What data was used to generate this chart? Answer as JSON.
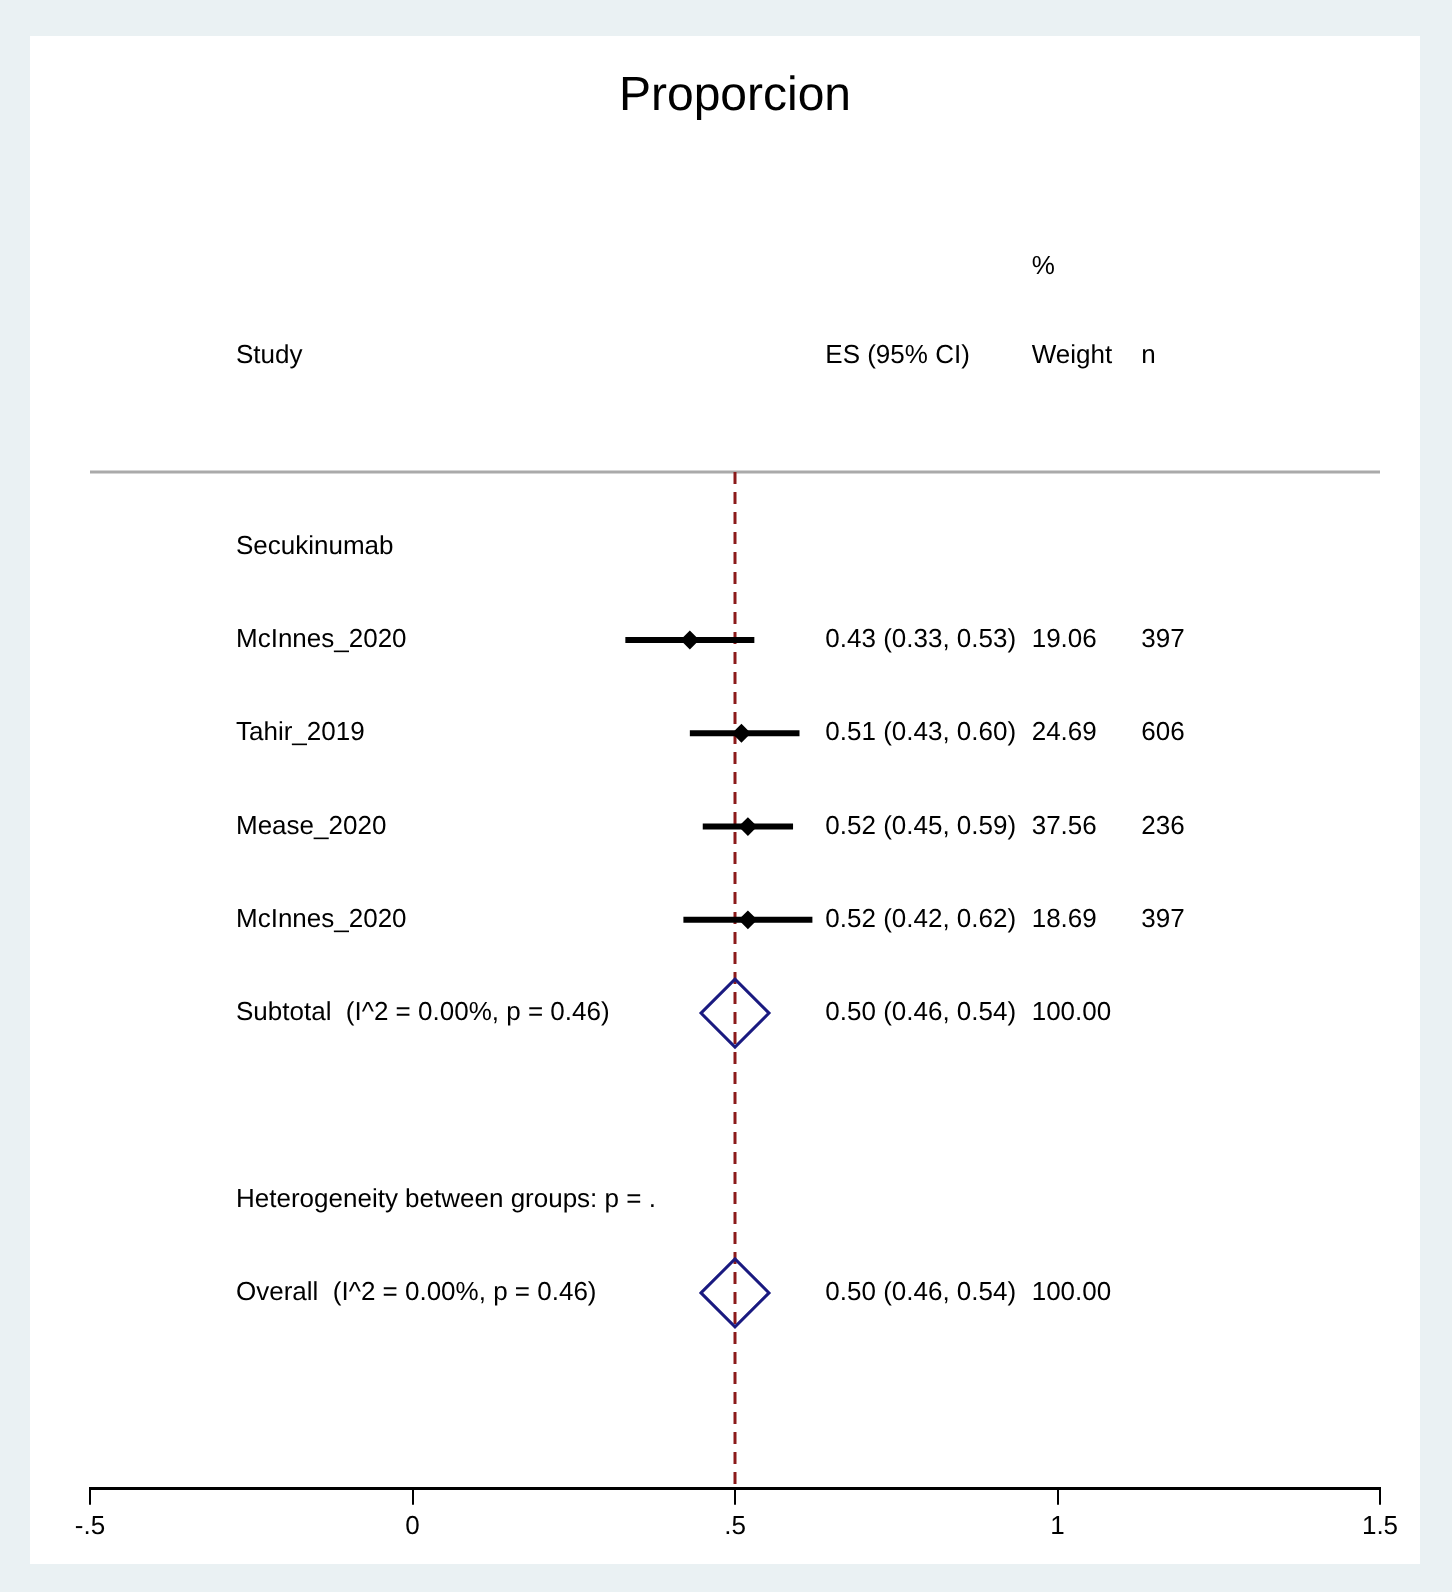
{
  "chart_data": {
    "type": "scatter",
    "title": "Proporcion",
    "orientation": "horizontal",
    "categories": [
      "Secukinumab",
      "McInnes_2020",
      "Tahir_2019",
      "Mease_2020",
      "McInnes_2020",
      "Subtotal  (I^2 = 0.00%, p = 0.46)",
      null,
      "Heterogeneity between groups: p = .",
      "Overall  (I^2 = 0.00%, p = 0.46)"
    ],
    "series": [
      {
        "color": "#000000",
        "marker": "diamond",
        "values": [
          null,
          0.43,
          0.51,
          0.52,
          0.52,
          null,
          null,
          null,
          null
        ],
        "errors": [
          null,
          [
            0.33,
            0.53
          ],
          [
            0.43,
            0.6
          ],
          [
            0.45,
            0.59
          ],
          [
            0.42,
            0.62
          ],
          null,
          null,
          null,
          null
        ]
      },
      {
        "color": "#1a1a80",
        "marker": "diamond",
        "values": [
          null,
          null,
          null,
          null,
          null,
          0.5,
          null,
          null,
          0.5
        ]
      }
    ],
    "annotations": [
      "%",
      "Study",
      "ES (95% CI)",
      "Weight",
      "n",
      "0.43 (0.33, 0.53)",
      "19.06",
      "397",
      "0.51 (0.43, 0.60)",
      "24.69",
      "606",
      "0.52 (0.45, 0.59)",
      "37.56",
      "236",
      "0.52 (0.42, 0.62)",
      "18.69",
      "397",
      "0.50 (0.46, 0.54)",
      "100.00",
      "0.50 (0.46, 0.54)",
      "100.00"
    ],
    "xlim": [
      -0.5,
      1.5
    ],
    "xticks": [
      {
        "value": -0.5,
        "label": "-.5"
      },
      0,
      {
        "value": 0.5,
        "label": ".5"
      },
      1,
      1.5
    ],
    "ref_lines": [
      {
        "axis": "x",
        "value": 0.5,
        "color": "#8b1a1a",
        "line_style": "dashed"
      }
    ],
    "grid": false,
    "legend": false
  }
}
